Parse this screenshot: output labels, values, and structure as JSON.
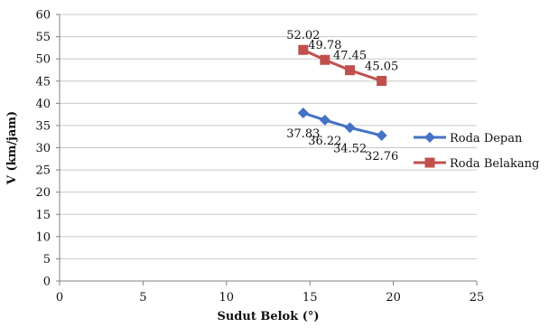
{
  "chart_data": {
    "type": "line",
    "title": "",
    "xlabel": "Sudut Belok (°)",
    "ylabel": "V (km/jam)",
    "xlim": [
      0,
      25
    ],
    "ylim": [
      0,
      60
    ],
    "x_ticks": [
      0,
      5,
      10,
      15,
      20,
      25
    ],
    "x_tick_labels": [
      "0",
      "5",
      "10",
      "15",
      "20",
      "25"
    ],
    "y_ticks": [
      0,
      5,
      10,
      15,
      20,
      25,
      30,
      35,
      40,
      45,
      50,
      55,
      60
    ],
    "y_tick_labels": [
      "0",
      "5",
      "10",
      "15",
      "20",
      "25",
      "30",
      "35",
      "40",
      "45",
      "50",
      "55",
      "60"
    ],
    "grid": "horizontal",
    "legend_position": "right",
    "series": [
      {
        "name": "Roda Depan",
        "color": "#4472C4",
        "marker": "diamond",
        "label_position": "below",
        "points": [
          {
            "x": 14.6,
            "y": 37.83,
            "label": "37.83"
          },
          {
            "x": 15.9,
            "y": 36.22,
            "label": "36.22"
          },
          {
            "x": 17.4,
            "y": 34.52,
            "label": "34.52"
          },
          {
            "x": 19.3,
            "y": 32.76,
            "label": "32.76"
          }
        ]
      },
      {
        "name": "Roda Belakang",
        "color": "#C0504D",
        "marker": "square",
        "label_position": "above",
        "points": [
          {
            "x": 14.6,
            "y": 52.02,
            "label": "52.02"
          },
          {
            "x": 15.9,
            "y": 49.78,
            "label": "49.78"
          },
          {
            "x": 17.4,
            "y": 47.45,
            "label": "47.45"
          },
          {
            "x": 19.3,
            "y": 45.05,
            "label": "45.05"
          }
        ]
      }
    ]
  }
}
